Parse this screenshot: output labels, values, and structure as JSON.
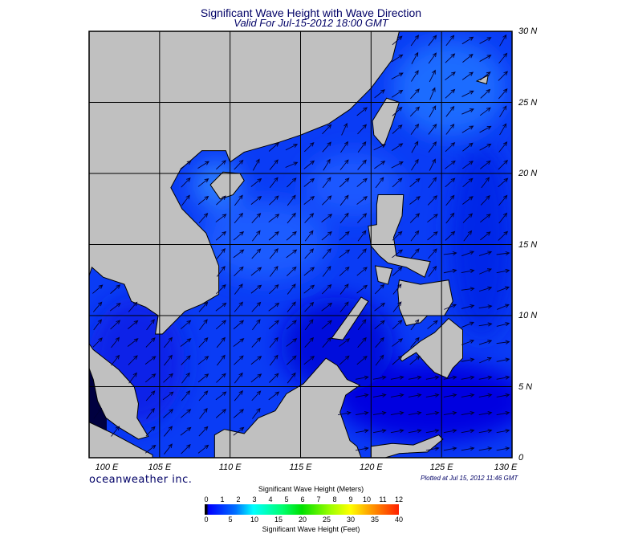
{
  "title": "Significant Wave Height with Wave Direction",
  "subtitle": "Valid For Jul-15-2012 18:00 GMT",
  "map": {
    "region": "South China Sea",
    "lon_range": [
      100,
      130
    ],
    "lat_range": [
      0,
      30
    ],
    "grid_interval_deg": 5,
    "lon_labels": [
      "100 E",
      "105 E",
      "110 E",
      "115 E",
      "120 E",
      "125 E",
      "130 E"
    ],
    "lat_labels": [
      "30 N",
      "25 N",
      "20 N",
      "15 N",
      "10 N",
      "5 N",
      "0"
    ],
    "land_color": "#c0c0c0",
    "predominant_wave_direction": "toward northeast",
    "typical_wave_height_m": "0.5-2"
  },
  "brand": "oceanweather inc.",
  "plotted": "Plotted at Jul 15, 2012 11:46 GMT",
  "colorbar": {
    "title_meters": "Significant Wave Height (Meters)",
    "title_feet": "Significant Wave Height (Feet)",
    "meters_ticks": [
      "0",
      "1",
      "2",
      "3",
      "4",
      "5",
      "6",
      "7",
      "8",
      "9",
      "10",
      "11",
      "12"
    ],
    "feet_ticks": [
      "0",
      "5",
      "10",
      "15",
      "20",
      "25",
      "30",
      "35",
      "40"
    ],
    "colors": [
      "#000000",
      "#0000ff",
      "#00ffff",
      "#00e000",
      "#ffff00",
      "#ff2000"
    ]
  }
}
